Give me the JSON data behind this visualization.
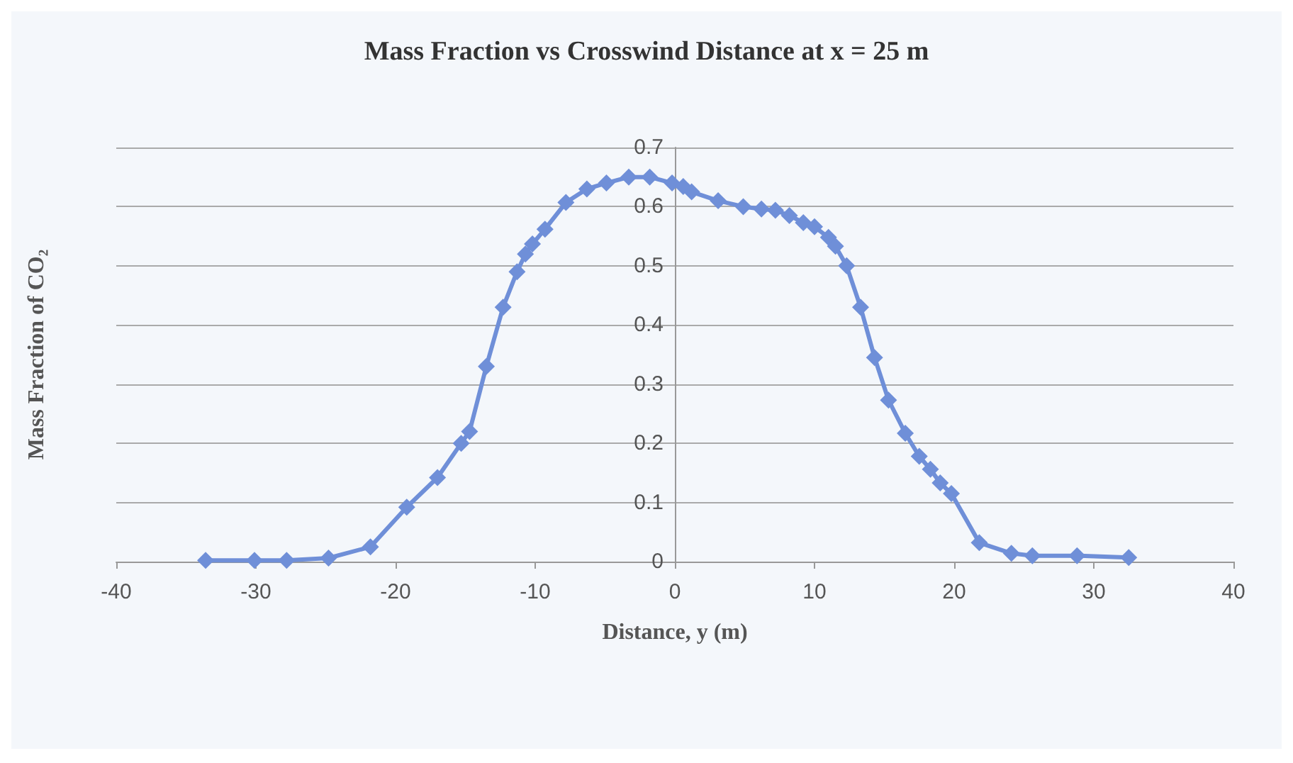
{
  "chart_data": {
    "type": "line",
    "title": "Mass Fraction vs Crosswind Distance at x = 25 m",
    "xlabel": "Distance, y (m)",
    "ylabel": "Mass Fraction of CO₂",
    "x": [
      -33.6,
      -30.1,
      -27.8,
      -24.8,
      -21.8,
      -19.2,
      -17.0,
      -15.3,
      -14.7,
      -13.5,
      -12.3,
      -11.3,
      -10.7,
      -10.2,
      -9.3,
      -7.8,
      -6.3,
      -4.9,
      -3.3,
      -1.8,
      -0.2,
      0.6,
      1.2,
      3.1,
      4.9,
      6.2,
      7.2,
      8.2,
      9.2,
      10.0,
      11.0,
      11.5,
      12.3,
      13.3,
      14.3,
      15.3,
      16.5,
      17.5,
      18.3,
      19.0,
      19.8,
      21.8,
      24.1,
      25.6,
      28.8,
      32.5
    ],
    "series": [
      {
        "color": "#6f8fd8",
        "values": [
          0.002,
          0.002,
          0.002,
          0.006,
          0.025,
          0.092,
          0.142,
          0.2,
          0.22,
          0.33,
          0.43,
          0.49,
          0.52,
          0.537,
          0.562,
          0.607,
          0.63,
          0.64,
          0.65,
          0.65,
          0.64,
          0.634,
          0.625,
          0.61,
          0.6,
          0.596,
          0.594,
          0.585,
          0.573,
          0.566,
          0.548,
          0.533,
          0.5,
          0.43,
          0.345,
          0.273,
          0.217,
          0.178,
          0.156,
          0.133,
          0.115,
          0.032,
          0.014,
          0.01,
          0.01,
          0.007
        ]
      }
    ],
    "xlim": [
      -40,
      40
    ],
    "xticks": [
      -40,
      -30,
      -20,
      -10,
      0,
      10,
      20,
      30,
      40
    ],
    "ylim": [
      0,
      0.7
    ],
    "yticks": [
      0,
      0.1,
      0.2,
      0.3,
      0.4,
      0.5,
      0.6,
      0.7
    ],
    "grid": "y",
    "marker": "diamond",
    "line_style": "solid"
  }
}
